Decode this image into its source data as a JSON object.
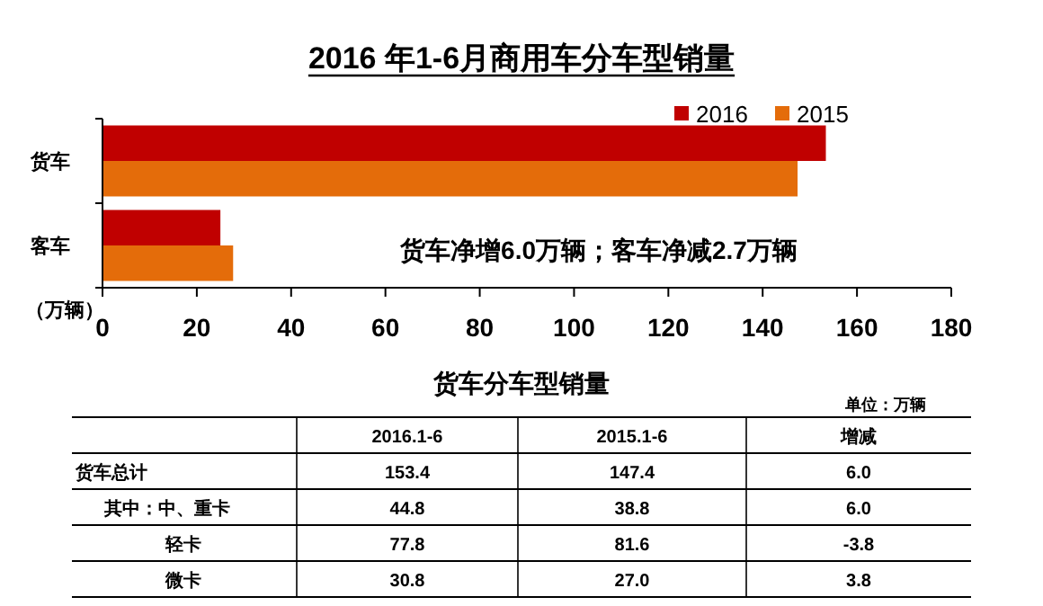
{
  "chart_data": [
    {
      "type": "bar",
      "orientation": "horizontal",
      "title": "2016 年1-6月商用车分车型销量",
      "xlabel": "（万辆）",
      "categories": [
        "货车",
        "客车"
      ],
      "series": [
        {
          "name": "2016",
          "color": "#c00000",
          "values": [
            153.4,
            25.0
          ]
        },
        {
          "name": "2015",
          "color": "#e46c0a",
          "values": [
            147.4,
            27.7
          ]
        }
      ],
      "xlim": [
        0,
        180
      ],
      "xticks": [
        0,
        20,
        40,
        60,
        80,
        100,
        120,
        140,
        160,
        180
      ],
      "legend": "top right",
      "grid": false,
      "annotations": [
        "货车净增6.0万辆；客车净减2.7万辆"
      ]
    },
    {
      "type": "other",
      "title": "货车分车型销量",
      "annotations": [
        "单位：万辆",
        "2016.1-6",
        "2015.1-6",
        "增减",
        "货车总计",
        "153.4",
        "147.4",
        "6.0",
        "其中：中、重卡",
        "44.8",
        "38.8",
        "6.0",
        "轻卡",
        "77.8",
        "81.6",
        "-3.8",
        "微卡",
        "30.8",
        "27.0",
        "3.8"
      ]
    }
  ]
}
